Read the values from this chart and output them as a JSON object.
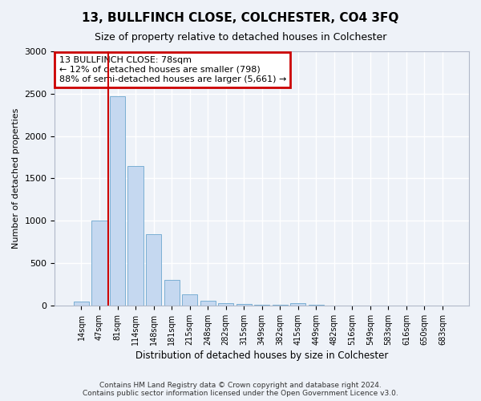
{
  "title": "13, BULLFINCH CLOSE, COLCHESTER, CO4 3FQ",
  "subtitle": "Size of property relative to detached houses in Colchester",
  "xlabel": "Distribution of detached houses by size in Colchester",
  "ylabel": "Number of detached properties",
  "categories": [
    "14sqm",
    "47sqm",
    "81sqm",
    "114sqm",
    "148sqm",
    "181sqm",
    "215sqm",
    "248sqm",
    "282sqm",
    "315sqm",
    "349sqm",
    "382sqm",
    "415sqm",
    "449sqm",
    "482sqm",
    "516sqm",
    "549sqm",
    "583sqm",
    "616sqm",
    "650sqm",
    "683sqm"
  ],
  "values": [
    50,
    1000,
    2470,
    1650,
    840,
    300,
    130,
    55,
    30,
    20,
    5,
    5,
    25,
    5,
    0,
    0,
    0,
    0,
    0,
    0,
    0
  ],
  "bar_color": "#c5d8f0",
  "bar_edge_color": "#7bafd4",
  "property_line_x": 1.5,
  "property_line_color": "#cc0000",
  "annotation_text": "13 BULLFINCH CLOSE: 78sqm\n← 12% of detached houses are smaller (798)\n88% of semi-detached houses are larger (5,661) →",
  "annotation_box_edge_color": "#cc0000",
  "ylim": [
    0,
    3000
  ],
  "yticks": [
    0,
    500,
    1000,
    1500,
    2000,
    2500,
    3000
  ],
  "footer": "Contains HM Land Registry data © Crown copyright and database right 2024.\nContains public sector information licensed under the Open Government Licence v3.0.",
  "background_color": "#eef2f8",
  "plot_background": "#eef2f8",
  "title_fontsize": 11,
  "subtitle_fontsize": 9
}
